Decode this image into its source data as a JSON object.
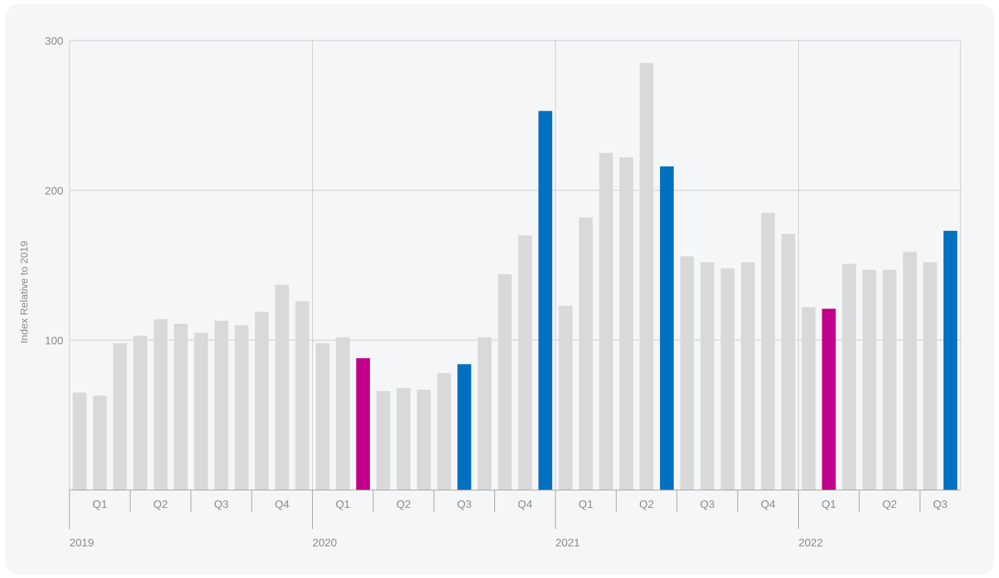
{
  "chart_data": {
    "type": "bar",
    "title": "",
    "ylabel": "Index Relative to 2019",
    "xlabel": "",
    "ylim": [
      0,
      300
    ],
    "y_ticks": [
      "100",
      "200",
      "300"
    ],
    "grid": true,
    "years": [
      "2019",
      "2020",
      "2021",
      "2022"
    ],
    "quarter_labels": [
      "Q1",
      "Q2",
      "Q3",
      "Q4",
      "Q1",
      "Q2",
      "Q3",
      "Q4",
      "Q1",
      "Q2",
      "Q3",
      "Q4",
      "Q1",
      "Q2",
      "Q3"
    ],
    "colors": {
      "default": "#d9d9d9",
      "highlight_blue": "#0070c0",
      "highlight_magenta": "#c0008a",
      "grid": "#c8c8c8",
      "axis": "#9a9a9a"
    },
    "values": [
      65,
      63,
      98,
      103,
      114,
      111,
      105,
      113,
      110,
      119,
      137,
      126,
      98,
      102,
      88,
      66,
      68,
      67,
      78,
      84,
      102,
      144,
      170,
      253,
      123,
      182,
      225,
      222,
      285,
      216,
      156,
      152,
      148,
      152,
      185,
      171,
      122,
      121,
      151,
      147,
      147,
      159,
      152,
      173
    ],
    "highlights": {
      "14": "highlight_magenta",
      "19": "highlight_blue",
      "23": "highlight_blue",
      "29": "highlight_blue",
      "37": "highlight_magenta",
      "43": "highlight_blue"
    }
  }
}
